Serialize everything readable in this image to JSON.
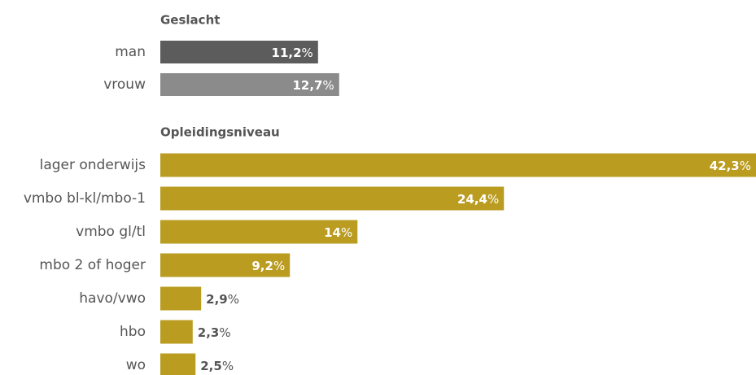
{
  "chart_data": [
    {
      "type": "bar",
      "title": "Geslacht",
      "categories": [
        "man",
        "vrouw"
      ],
      "values": [
        11.2,
        12.7
      ],
      "value_labels": [
        "11,2%",
        "12,7%"
      ],
      "colors": [
        "#5c5c5c",
        "#8b8b8b"
      ]
    },
    {
      "type": "bar",
      "title": "Opleidingsniveau",
      "categories": [
        "lager onderwijs",
        "vmbo bl-kl/mbo-1",
        "vmbo gl/tl",
        "mbo 2 of hoger",
        "havo/vwo",
        "hbo",
        "wo"
      ],
      "values": [
        42.3,
        24.4,
        14,
        9.2,
        2.9,
        2.3,
        2.5
      ],
      "value_labels": [
        "42,3%",
        "24,4%",
        "14%",
        "9,2%",
        "2,9%",
        "2,3%",
        "2,5%"
      ],
      "color": "#ba9c21"
    }
  ]
}
